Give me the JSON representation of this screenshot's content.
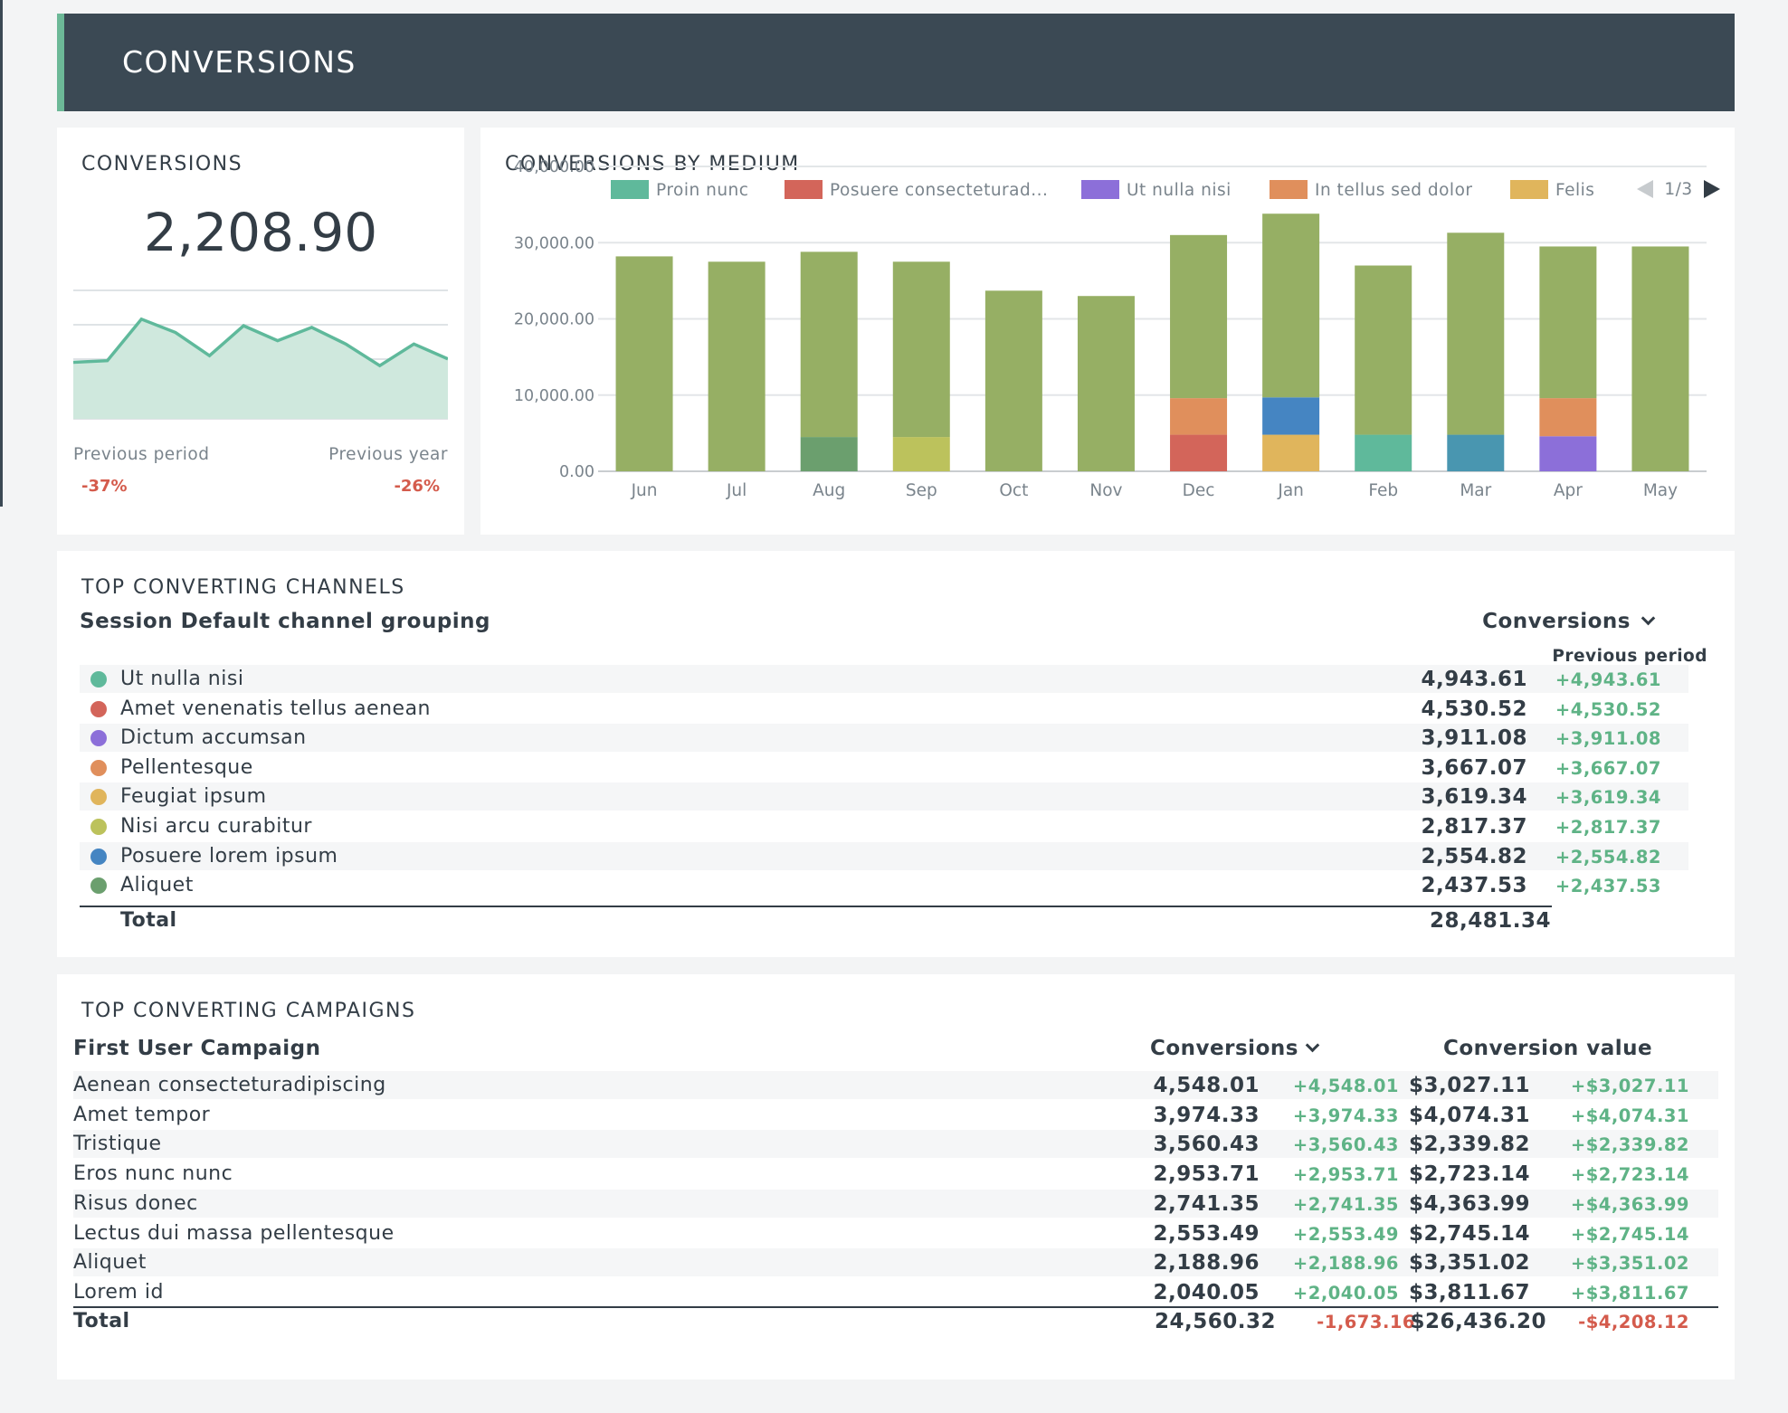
{
  "header": {
    "title": "CONVERSIONS"
  },
  "kpi": {
    "title": "CONVERSIONS",
    "value": "2,208.90",
    "previous_period_label": "Previous period",
    "previous_period_value": "-37%",
    "previous_year_label": "Previous year",
    "previous_year_value": "-26%",
    "sparkline": [
      34,
      35,
      60,
      52,
      38,
      56,
      47,
      55,
      45,
      32,
      45,
      36
    ],
    "sparkline_max": 80
  },
  "chart_data": {
    "type": "bar",
    "title": "CONVERSIONS BY MEDIUM",
    "categories": [
      "Jun",
      "Jul",
      "Aug",
      "Sep",
      "Oct",
      "Nov",
      "Dec",
      "Jan",
      "Feb",
      "Mar",
      "Apr",
      "May"
    ],
    "ylim": [
      0,
      40000
    ],
    "yticks": [
      "40,000.00",
      "30,000.00",
      "20,000.00",
      "10,000.00",
      "0.00"
    ],
    "ytick_values": [
      40000,
      30000,
      20000,
      10000,
      0
    ],
    "legend": [
      {
        "name": "Proin nunc",
        "color": "#5fb99b"
      },
      {
        "name": "Posuere consecteturad...",
        "color": "#d3655a"
      },
      {
        "name": "Ut nulla nisi",
        "color": "#8c6fd9"
      },
      {
        "name": "In tellus sed dolor",
        "color": "#e08f5c"
      },
      {
        "name": "Felis",
        "color": "#e0b55c"
      }
    ],
    "legend_page": "1/3",
    "stacks": [
      [
        {
          "value": 28200,
          "color": "#96af64"
        }
      ],
      [
        {
          "value": 27500,
          "color": "#96af64"
        }
      ],
      [
        {
          "value": 4500,
          "color": "#6b9f6e"
        },
        {
          "value": 24300,
          "color": "#96af64"
        }
      ],
      [
        {
          "value": 4500,
          "color": "#bcc25c"
        },
        {
          "value": 23000,
          "color": "#96af64"
        }
      ],
      [
        {
          "value": 23700,
          "color": "#96af64"
        }
      ],
      [
        {
          "value": 23000,
          "color": "#96af64"
        }
      ],
      [
        {
          "value": 4800,
          "color": "#d3655a"
        },
        {
          "value": 4800,
          "color": "#e08f5c"
        },
        {
          "value": 21400,
          "color": "#96af64"
        }
      ],
      [
        {
          "value": 4800,
          "color": "#e0b55c"
        },
        {
          "value": 4900,
          "color": "#4585c2"
        },
        {
          "value": 24100,
          "color": "#96af64"
        }
      ],
      [
        {
          "value": 4800,
          "color": "#5fb99b"
        },
        {
          "value": 22200,
          "color": "#96af64"
        }
      ],
      [
        {
          "value": 4800,
          "color": "#4996b0"
        },
        {
          "value": 26500,
          "color": "#96af64"
        }
      ],
      [
        {
          "value": 4600,
          "color": "#8c6fd9"
        },
        {
          "value": 5000,
          "color": "#e08f5c"
        },
        {
          "value": 19900,
          "color": "#96af64"
        }
      ],
      [
        {
          "value": 29500,
          "color": "#96af64"
        }
      ]
    ]
  },
  "channels": {
    "title": "TOP CONVERTING CHANNELS",
    "dimension_header": "Session Default channel grouping",
    "metric_header": "Conversions",
    "compare_header": "Previous period",
    "rows": [
      {
        "name": "Ut nulla nisi",
        "color": "#5fb99b",
        "value": "4,943.61",
        "delta": "+4,943.61"
      },
      {
        "name": "Amet venenatis tellus aenean",
        "color": "#d3655a",
        "value": "4,530.52",
        "delta": "+4,530.52"
      },
      {
        "name": "Dictum accumsan",
        "color": "#8c6fd9",
        "value": "3,911.08",
        "delta": "+3,911.08"
      },
      {
        "name": "Pellentesque",
        "color": "#e08f5c",
        "value": "3,667.07",
        "delta": "+3,667.07"
      },
      {
        "name": "Feugiat ipsum",
        "color": "#e0b55c",
        "value": "3,619.34",
        "delta": "+3,619.34"
      },
      {
        "name": "Nisi arcu curabitur",
        "color": "#bcc25c",
        "value": "2,817.37",
        "delta": "+2,817.37"
      },
      {
        "name": "Posuere lorem ipsum",
        "color": "#4585c2",
        "value": "2,554.82",
        "delta": "+2,554.82"
      },
      {
        "name": "Aliquet",
        "color": "#6b9f6e",
        "value": "2,437.53",
        "delta": "+2,437.53"
      }
    ],
    "total_label": "Total",
    "total_value": "28,481.34"
  },
  "campaigns": {
    "title": "TOP CONVERTING CAMPAIGNS",
    "dimension_header": "First User Campaign",
    "conv_header": "Conversions",
    "value_header": "Conversion value",
    "rows": [
      {
        "name": "Aenean consecteturadipiscing",
        "conv": "4,548.01",
        "conv_delta": "+4,548.01",
        "val": "$3,027.11",
        "val_delta": "+$3,027.11"
      },
      {
        "name": "Amet tempor",
        "conv": "3,974.33",
        "conv_delta": "+3,974.33",
        "val": "$4,074.31",
        "val_delta": "+$4,074.31"
      },
      {
        "name": "Tristique",
        "conv": "3,560.43",
        "conv_delta": "+3,560.43",
        "val": "$2,339.82",
        "val_delta": "+$2,339.82"
      },
      {
        "name": "Eros nunc nunc",
        "conv": "2,953.71",
        "conv_delta": "+2,953.71",
        "val": "$2,723.14",
        "val_delta": "+$2,723.14"
      },
      {
        "name": "Risus donec",
        "conv": "2,741.35",
        "conv_delta": "+2,741.35",
        "val": "$4,363.99",
        "val_delta": "+$4,363.99"
      },
      {
        "name": "Lectus dui massa pellentesque",
        "conv": "2,553.49",
        "conv_delta": "+2,553.49",
        "val": "$2,745.14",
        "val_delta": "+$2,745.14"
      },
      {
        "name": "Aliquet",
        "conv": "2,188.96",
        "conv_delta": "+2,188.96",
        "val": "$3,351.02",
        "val_delta": "+$3,351.02"
      },
      {
        "name": "Lorem id",
        "conv": "2,040.05",
        "conv_delta": "+2,040.05",
        "val": "$3,811.67",
        "val_delta": "+$3,811.67"
      }
    ],
    "total_label": "Total",
    "total_conv": "24,560.32",
    "total_conv_delta": "-1,673.16",
    "total_val": "$26,436.20",
    "total_val_delta": "-$4,208.12"
  }
}
